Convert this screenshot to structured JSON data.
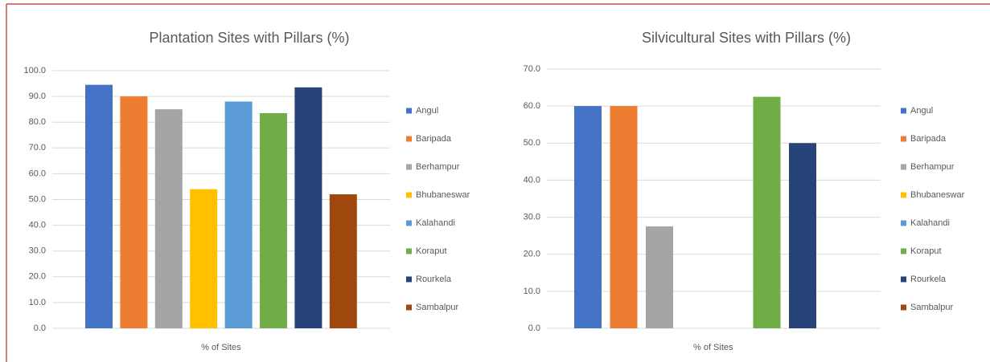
{
  "chart_data": [
    {
      "type": "bar",
      "title": "Plantation Sites with Pillars (%)",
      "categories": [
        "% of Sites"
      ],
      "series": [
        {
          "name": "Angul",
          "color": "#4472c4",
          "values": [
            94.5
          ]
        },
        {
          "name": "Baripada",
          "color": "#ed7d31",
          "values": [
            90
          ]
        },
        {
          "name": "Berhampur",
          "color": "#a5a5a5",
          "values": [
            85
          ]
        },
        {
          "name": "Bhubaneswar",
          "color": "#ffc000",
          "values": [
            54
          ]
        },
        {
          "name": "Kalahandi",
          "color": "#5b9bd5",
          "values": [
            88
          ]
        },
        {
          "name": "Koraput",
          "color": "#70ad47",
          "values": [
            83.5
          ]
        },
        {
          "name": "Rourkela",
          "color": "#264478",
          "values": [
            93.5
          ]
        },
        {
          "name": "Sambalpur",
          "color": "#9e480e",
          "values": [
            52
          ]
        }
      ],
      "ylim": [
        0,
        100
      ],
      "yticks": [
        {
          "value": 0,
          "label": "0.0"
        },
        {
          "value": 10,
          "label": "10.0"
        },
        {
          "value": 20,
          "label": "20.0"
        },
        {
          "value": 30,
          "label": "30.0"
        },
        {
          "value": 40,
          "label": "40.0"
        },
        {
          "value": 50,
          "label": "50.0"
        },
        {
          "value": 60,
          "label": "60.0"
        },
        {
          "value": 70,
          "label": "70.0"
        },
        {
          "value": 80,
          "label": "80.0"
        },
        {
          "value": 90,
          "label": "90.0"
        },
        {
          "value": 100,
          "label": "100.0"
        }
      ],
      "grid": true,
      "legend": "right"
    },
    {
      "type": "bar",
      "title": "Silvicultural Sites with Pillars (%)",
      "categories": [
        "% of Sites"
      ],
      "series": [
        {
          "name": "Angul",
          "color": "#4472c4",
          "values": [
            60
          ]
        },
        {
          "name": "Baripada",
          "color": "#ed7d31",
          "values": [
            60
          ]
        },
        {
          "name": "Berhampur",
          "color": "#a5a5a5",
          "values": [
            27.5
          ]
        },
        {
          "name": "Bhubaneswar",
          "color": "#ffc000",
          "values": [
            0
          ]
        },
        {
          "name": "Kalahandi",
          "color": "#5b9bd5",
          "values": [
            0
          ]
        },
        {
          "name": "Koraput",
          "color": "#70ad47",
          "values": [
            62.5
          ]
        },
        {
          "name": "Rourkela",
          "color": "#264478",
          "values": [
            50
          ]
        },
        {
          "name": "Sambalpur",
          "color": "#9e480e",
          "values": [
            0
          ]
        }
      ],
      "ylim": [
        0,
        70
      ],
      "yticks": [
        {
          "value": 0,
          "label": "0.0"
        },
        {
          "value": 10,
          "label": "10.0"
        },
        {
          "value": 20,
          "label": "20.0"
        },
        {
          "value": 30,
          "label": "30.0"
        },
        {
          "value": 40,
          "label": "40.0"
        },
        {
          "value": 50,
          "label": "50.0"
        },
        {
          "value": 60,
          "label": "60.0"
        },
        {
          "value": 70,
          "label": "70.0"
        }
      ],
      "grid": true,
      "legend": "right"
    }
  ]
}
